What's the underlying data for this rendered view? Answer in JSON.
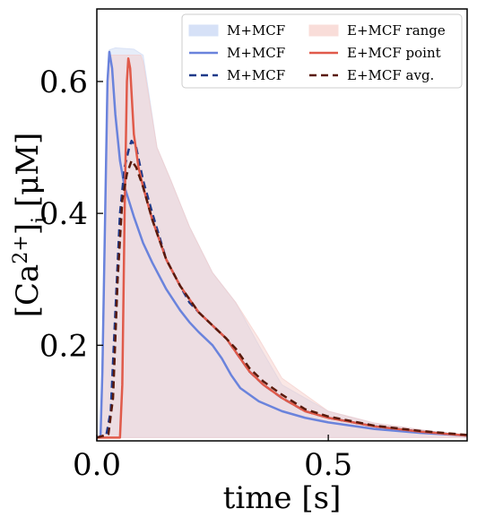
{
  "chart_data": {
    "type": "line",
    "xlabel": "time [s]",
    "ylabel_parts": {
      "base": "[Ca",
      "sup": "2+",
      "close": "]",
      "sub": "i",
      "unit": " [μM]"
    },
    "xlim": [
      0,
      0.8
    ],
    "ylim": [
      0.055,
      0.71
    ],
    "x_ticks": [
      {
        "value": 0,
        "label": "0.0"
      },
      {
        "value": 0.5,
        "label": "0.5"
      }
    ],
    "y_ticks": [
      {
        "value": 0.2,
        "label": "0.2"
      },
      {
        "value": 0.4,
        "label": "0.4"
      },
      {
        "value": 0.6,
        "label": "0.6"
      }
    ],
    "legend_position": "top-right",
    "legend_columns": 2,
    "bands": [
      {
        "name": "M+MCF",
        "color": "#c9d6f2",
        "opacity": 0.45,
        "upper": [
          [
            0,
            0.06
          ],
          [
            0.008,
            0.06
          ],
          [
            0.015,
            0.3
          ],
          [
            0.022,
            0.6
          ],
          [
            0.027,
            0.648
          ],
          [
            0.04,
            0.651
          ],
          [
            0.08,
            0.649
          ],
          [
            0.1,
            0.64
          ],
          [
            0.13,
            0.5
          ],
          [
            0.16,
            0.45
          ],
          [
            0.2,
            0.38
          ],
          [
            0.25,
            0.31
          ],
          [
            0.3,
            0.265
          ],
          [
            0.35,
            0.2
          ],
          [
            0.4,
            0.14
          ],
          [
            0.5,
            0.1
          ],
          [
            0.6,
            0.082
          ],
          [
            0.8,
            0.062
          ]
        ],
        "lower": [
          [
            0,
            0.06
          ],
          [
            0.02,
            0.06
          ],
          [
            0.05,
            0.06
          ],
          [
            0.08,
            0.06
          ],
          [
            0.1,
            0.06
          ],
          [
            0.2,
            0.06
          ],
          [
            0.4,
            0.06
          ],
          [
            0.8,
            0.06
          ]
        ]
      },
      {
        "name": "E+MCF range",
        "color": "#f4c9c6",
        "opacity": 0.45,
        "upper": [
          [
            0,
            0.06
          ],
          [
            0.008,
            0.06
          ],
          [
            0.015,
            0.3
          ],
          [
            0.022,
            0.6
          ],
          [
            0.027,
            0.64
          ],
          [
            0.06,
            0.64
          ],
          [
            0.095,
            0.64
          ],
          [
            0.1,
            0.63
          ],
          [
            0.13,
            0.5
          ],
          [
            0.16,
            0.45
          ],
          [
            0.2,
            0.38
          ],
          [
            0.25,
            0.31
          ],
          [
            0.3,
            0.265
          ],
          [
            0.35,
            0.21
          ],
          [
            0.4,
            0.15
          ],
          [
            0.5,
            0.1
          ],
          [
            0.6,
            0.082
          ],
          [
            0.8,
            0.062
          ]
        ],
        "lower": [
          [
            0,
            0.06
          ],
          [
            0.02,
            0.06
          ],
          [
            0.05,
            0.06
          ],
          [
            0.08,
            0.06
          ],
          [
            0.1,
            0.06
          ],
          [
            0.2,
            0.06
          ],
          [
            0.4,
            0.06
          ],
          [
            0.8,
            0.06
          ]
        ]
      }
    ],
    "series": [
      {
        "name": "M+MCF",
        "color": "#6a83dc",
        "dash": "",
        "width": 2.5,
        "points": [
          [
            0,
            0.06
          ],
          [
            0.008,
            0.062
          ],
          [
            0.012,
            0.16
          ],
          [
            0.018,
            0.4
          ],
          [
            0.023,
            0.6
          ],
          [
            0.027,
            0.645
          ],
          [
            0.033,
            0.62
          ],
          [
            0.04,
            0.55
          ],
          [
            0.05,
            0.48
          ],
          [
            0.06,
            0.44
          ],
          [
            0.08,
            0.395
          ],
          [
            0.1,
            0.355
          ],
          [
            0.12,
            0.325
          ],
          [
            0.15,
            0.285
          ],
          [
            0.18,
            0.253
          ],
          [
            0.2,
            0.235
          ],
          [
            0.22,
            0.22
          ],
          [
            0.25,
            0.2
          ],
          [
            0.27,
            0.18
          ],
          [
            0.29,
            0.155
          ],
          [
            0.31,
            0.135
          ],
          [
            0.35,
            0.115
          ],
          [
            0.4,
            0.1
          ],
          [
            0.45,
            0.09
          ],
          [
            0.5,
            0.083
          ],
          [
            0.6,
            0.073
          ],
          [
            0.7,
            0.067
          ],
          [
            0.8,
            0.063
          ]
        ]
      },
      {
        "name": "M+MCF",
        "color": "#1f3a8a",
        "dash": "8,5",
        "width": 2.5,
        "points": [
          [
            0,
            0.06
          ],
          [
            0.02,
            0.062
          ],
          [
            0.03,
            0.1
          ],
          [
            0.04,
            0.25
          ],
          [
            0.05,
            0.4
          ],
          [
            0.06,
            0.47
          ],
          [
            0.07,
            0.5
          ],
          [
            0.075,
            0.51
          ],
          [
            0.085,
            0.5
          ],
          [
            0.1,
            0.45
          ],
          [
            0.12,
            0.4
          ],
          [
            0.15,
            0.33
          ],
          [
            0.18,
            0.29
          ],
          [
            0.2,
            0.265
          ],
          [
            0.22,
            0.25
          ],
          [
            0.25,
            0.23
          ],
          [
            0.28,
            0.21
          ],
          [
            0.3,
            0.19
          ],
          [
            0.33,
            0.16
          ],
          [
            0.36,
            0.14
          ],
          [
            0.4,
            0.12
          ],
          [
            0.45,
            0.1
          ],
          [
            0.5,
            0.09
          ],
          [
            0.6,
            0.077
          ],
          [
            0.7,
            0.069
          ],
          [
            0.8,
            0.063
          ]
        ]
      },
      {
        "name": "E+MCF point",
        "color": "#e05a4a",
        "dash": "",
        "width": 2.5,
        "points": [
          [
            0,
            0.06
          ],
          [
            0.05,
            0.06
          ],
          [
            0.055,
            0.14
          ],
          [
            0.06,
            0.4
          ],
          [
            0.065,
            0.6
          ],
          [
            0.068,
            0.635
          ],
          [
            0.072,
            0.62
          ],
          [
            0.08,
            0.52
          ],
          [
            0.09,
            0.47
          ],
          [
            0.1,
            0.44
          ],
          [
            0.12,
            0.39
          ],
          [
            0.15,
            0.33
          ],
          [
            0.18,
            0.29
          ],
          [
            0.2,
            0.27
          ],
          [
            0.22,
            0.25
          ],
          [
            0.25,
            0.23
          ],
          [
            0.28,
            0.21
          ],
          [
            0.3,
            0.19
          ],
          [
            0.33,
            0.16
          ],
          [
            0.36,
            0.14
          ],
          [
            0.4,
            0.12
          ],
          [
            0.45,
            0.1
          ],
          [
            0.5,
            0.09
          ],
          [
            0.6,
            0.077
          ],
          [
            0.7,
            0.069
          ],
          [
            0.8,
            0.063
          ]
        ]
      },
      {
        "name": "E+MCF avg.",
        "color": "#5a1a0c",
        "dash": "8,5",
        "width": 2.5,
        "points": [
          [
            0,
            0.06
          ],
          [
            0.025,
            0.065
          ],
          [
            0.035,
            0.12
          ],
          [
            0.045,
            0.3
          ],
          [
            0.055,
            0.42
          ],
          [
            0.065,
            0.46
          ],
          [
            0.075,
            0.48
          ],
          [
            0.085,
            0.47
          ],
          [
            0.1,
            0.44
          ],
          [
            0.12,
            0.39
          ],
          [
            0.15,
            0.33
          ],
          [
            0.18,
            0.29
          ],
          [
            0.2,
            0.27
          ],
          [
            0.22,
            0.25
          ],
          [
            0.25,
            0.23
          ],
          [
            0.28,
            0.21
          ],
          [
            0.3,
            0.195
          ],
          [
            0.33,
            0.165
          ],
          [
            0.36,
            0.145
          ],
          [
            0.4,
            0.125
          ],
          [
            0.45,
            0.103
          ],
          [
            0.5,
            0.092
          ],
          [
            0.6,
            0.078
          ],
          [
            0.7,
            0.07
          ],
          [
            0.8,
            0.064
          ]
        ]
      }
    ],
    "legend": [
      {
        "label": "M+MCF",
        "kind": "patch",
        "color": "#d6e1f7"
      },
      {
        "label": "E+MCF range",
        "kind": "patch",
        "color": "#f9ddd9"
      },
      {
        "label": "M+MCF",
        "kind": "line",
        "color": "#6a83dc",
        "dash": ""
      },
      {
        "label": "E+MCF point",
        "kind": "line",
        "color": "#e05a4a",
        "dash": ""
      },
      {
        "label": "M+MCF",
        "kind": "line",
        "color": "#1f3a8a",
        "dash": "8,5"
      },
      {
        "label": "E+MCF avg.",
        "kind": "line",
        "color": "#5a1a0c",
        "dash": "8,5"
      }
    ]
  }
}
